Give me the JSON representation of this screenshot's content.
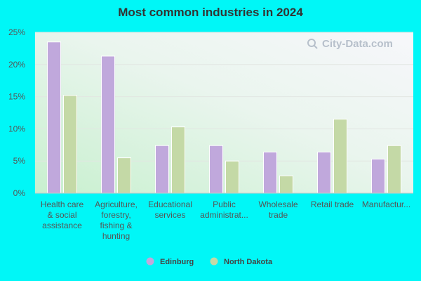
{
  "chart_data": {
    "type": "bar",
    "title": "Most common industries in 2024",
    "categories": [
      [
        "Health care",
        "& social",
        "assistance"
      ],
      [
        "Agriculture,",
        "forestry,",
        "fishing &",
        "hunting"
      ],
      [
        "Educational",
        "services"
      ],
      [
        "Public",
        "administrat..."
      ],
      [
        "Wholesale",
        "trade"
      ],
      [
        "Retail trade"
      ],
      [
        "Manufactur..."
      ]
    ],
    "series": [
      {
        "name": "Edinburg",
        "color": "#c0a8dc",
        "values": [
          23.5,
          21.3,
          7.4,
          7.4,
          6.4,
          6.4,
          5.3
        ]
      },
      {
        "name": "North Dakota",
        "color": "#c4d9a6",
        "values": [
          15.2,
          5.5,
          10.3,
          5.0,
          2.7,
          11.5,
          7.4
        ]
      }
    ],
    "ylim": [
      0,
      25
    ],
    "yticks": [
      "0%",
      "5%",
      "10%",
      "15%",
      "20%",
      "25%"
    ],
    "ytick_values": [
      0,
      5,
      10,
      15,
      20,
      25
    ],
    "grid": true,
    "legend": "bottom-center"
  },
  "watermark": {
    "text": "City-Data.com",
    "icon": "search-icon"
  }
}
